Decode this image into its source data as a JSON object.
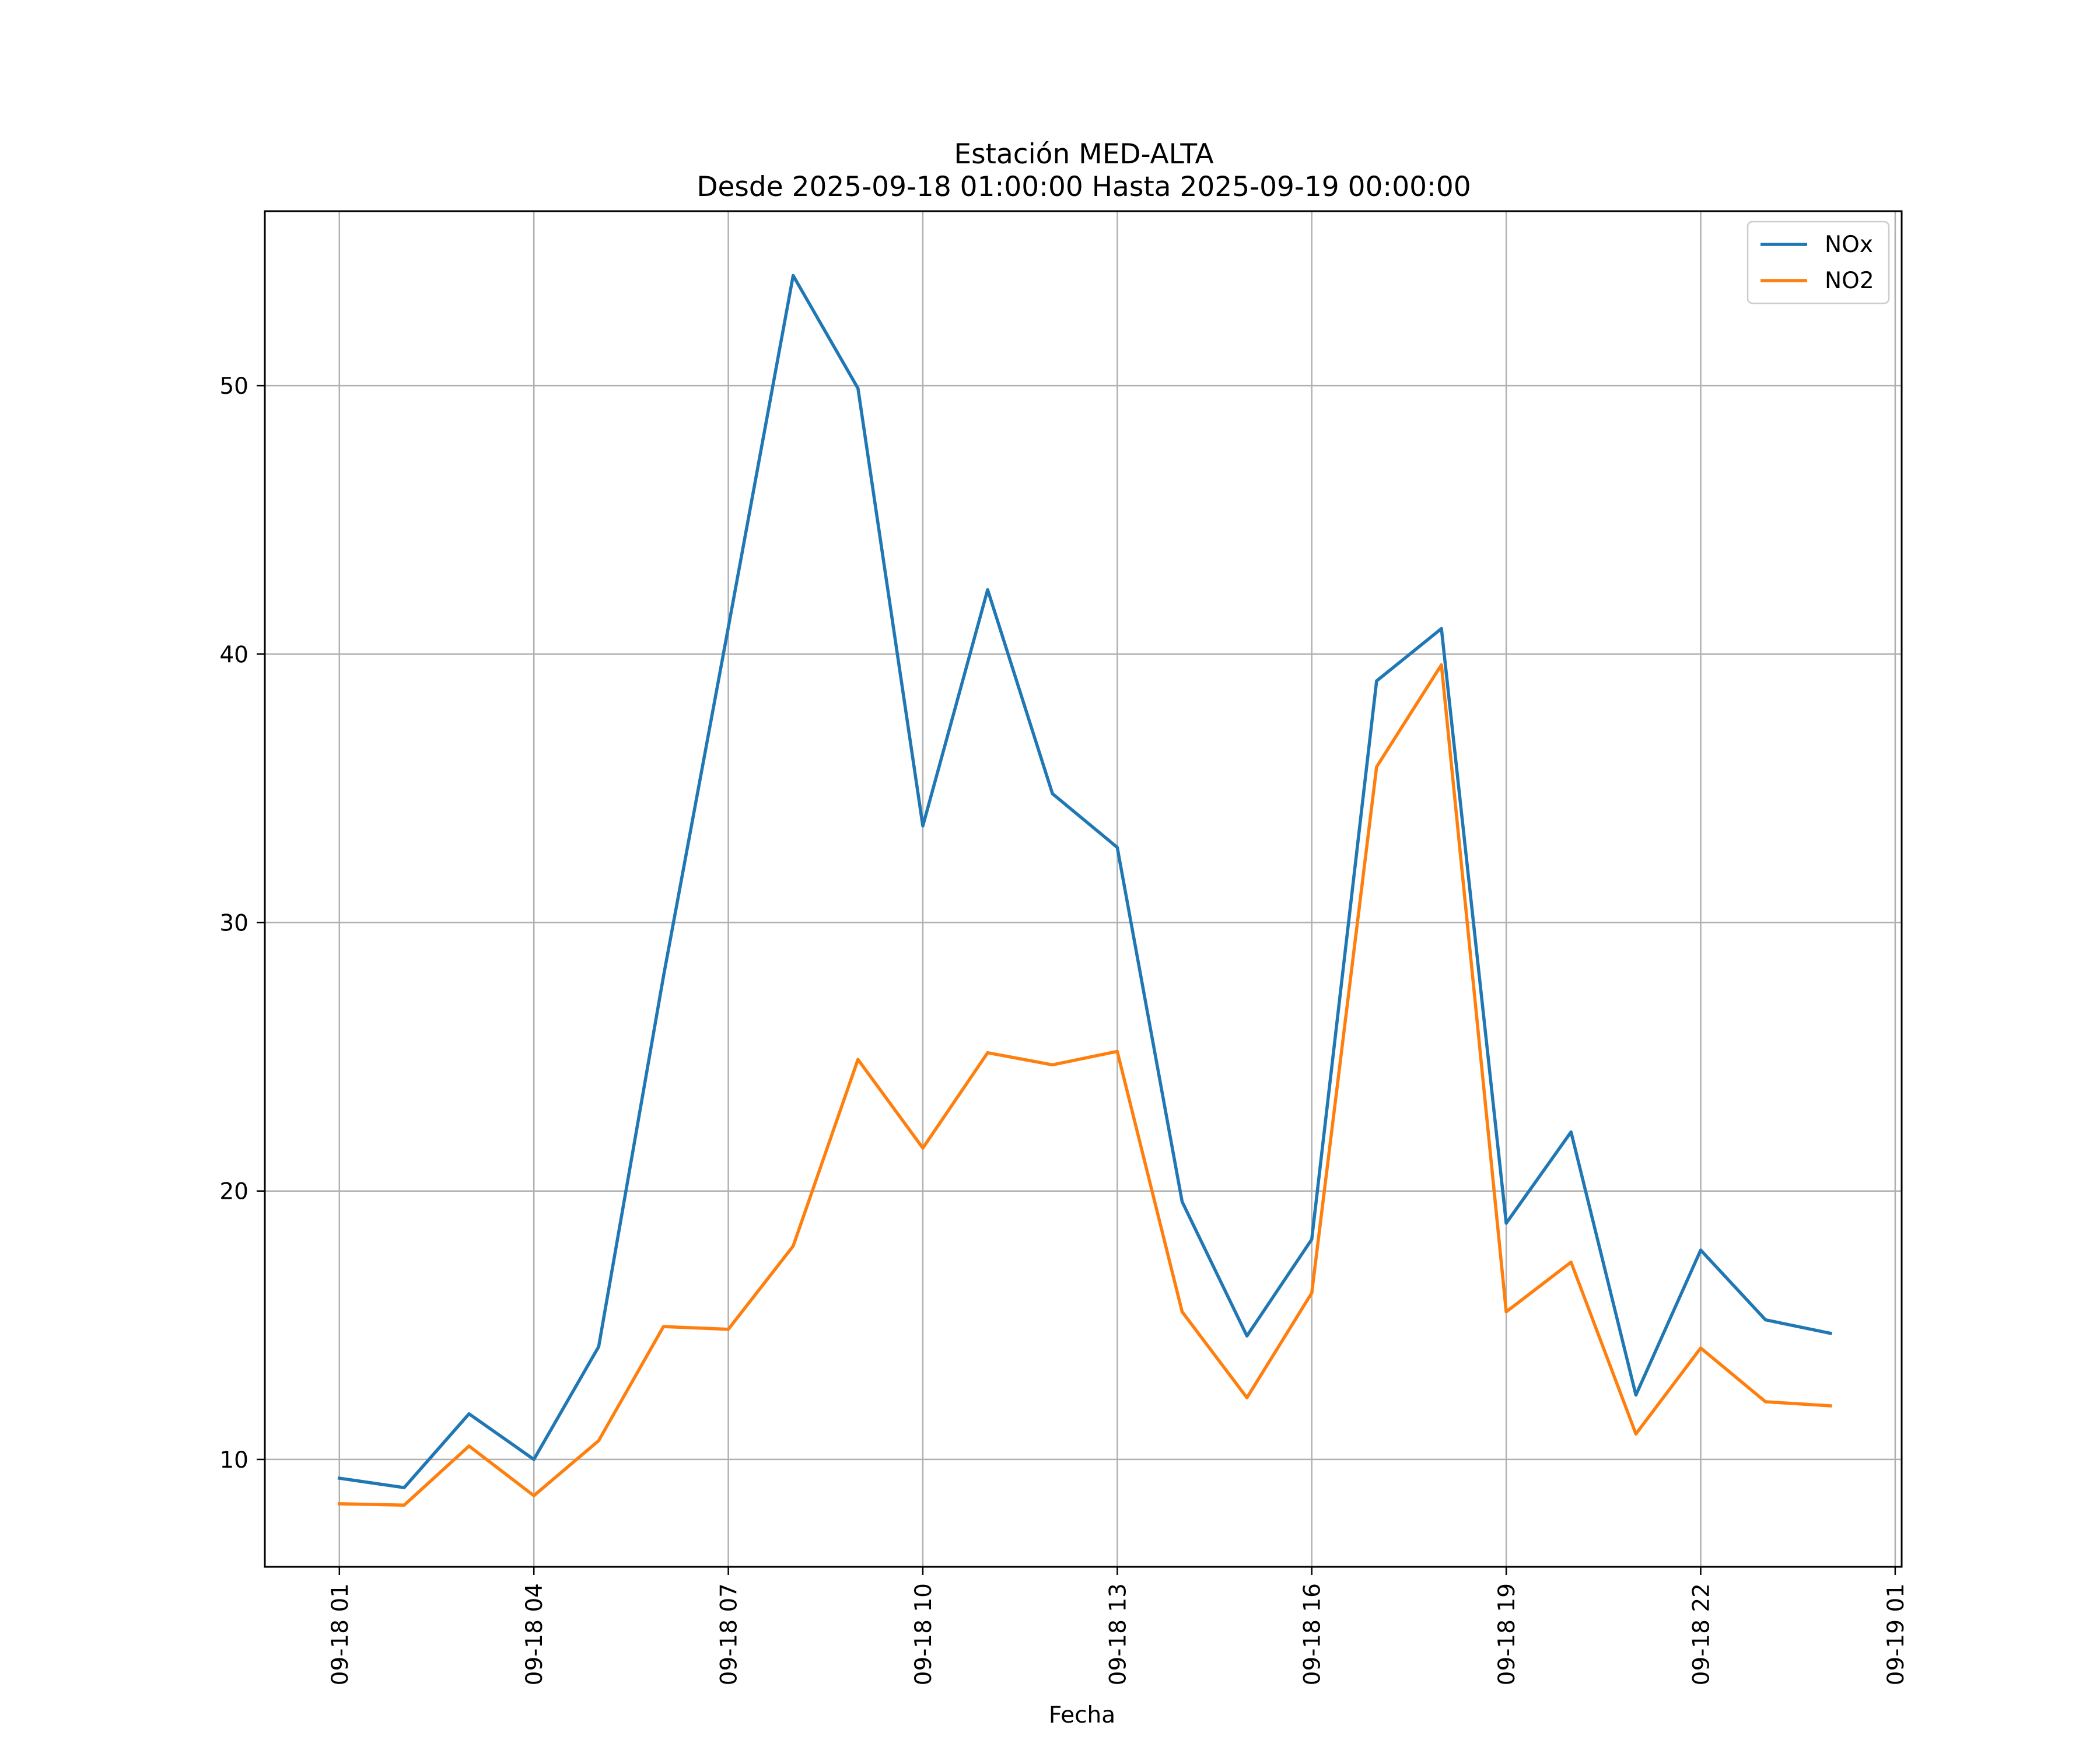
{
  "chart_data": {
    "type": "line",
    "title_line1": "Estación MED-ALTA",
    "title_line2": "Desde 2025-09-18 01:00:00 Hasta 2025-09-19 00:00:00",
    "xlabel": "Fecha",
    "ylabel": "",
    "x": [
      1,
      2,
      3,
      4,
      5,
      6,
      7,
      8,
      9,
      10,
      11,
      12,
      13,
      14,
      15,
      16,
      17,
      18,
      19,
      20,
      21,
      22,
      23,
      24
    ],
    "xlim": [
      -0.15,
      25.1
    ],
    "x_ticks": [
      {
        "value": 1,
        "label": "09-18 01"
      },
      {
        "value": 4,
        "label": "09-18 04"
      },
      {
        "value": 7,
        "label": "09-18 07"
      },
      {
        "value": 10,
        "label": "09-18 10"
      },
      {
        "value": 13,
        "label": "09-18 13"
      },
      {
        "value": 16,
        "label": "09-18 16"
      },
      {
        "value": 19,
        "label": "09-18 19"
      },
      {
        "value": 22,
        "label": "09-18 22"
      },
      {
        "value": 25,
        "label": "09-19 01"
      }
    ],
    "ylim": [
      6.0,
      56.5
    ],
    "y_ticks": [
      {
        "value": 10,
        "label": "10"
      },
      {
        "value": 20,
        "label": "20"
      },
      {
        "value": 30,
        "label": "30"
      },
      {
        "value": 40,
        "label": "40"
      },
      {
        "value": 50,
        "label": "50"
      }
    ],
    "grid": true,
    "legend_position": "top-right",
    "series": [
      {
        "name": "NOx",
        "color": "#1f77b4",
        "values": [
          9.3,
          8.95,
          11.7,
          10.0,
          14.2,
          28.0,
          41.0,
          54.1,
          49.9,
          33.6,
          42.4,
          34.8,
          32.8,
          19.6,
          14.6,
          18.2,
          39.0,
          40.95,
          18.8,
          22.2,
          12.4,
          17.8,
          15.2,
          14.7
        ]
      },
      {
        "name": "NO2",
        "color": "#ff7f0e",
        "values": [
          8.35,
          8.3,
          10.5,
          8.65,
          10.7,
          14.95,
          14.85,
          17.95,
          24.9,
          21.6,
          25.15,
          24.7,
          25.2,
          15.5,
          12.3,
          16.2,
          35.8,
          39.6,
          15.5,
          17.35,
          10.95,
          14.15,
          12.15,
          12.0
        ]
      }
    ]
  }
}
